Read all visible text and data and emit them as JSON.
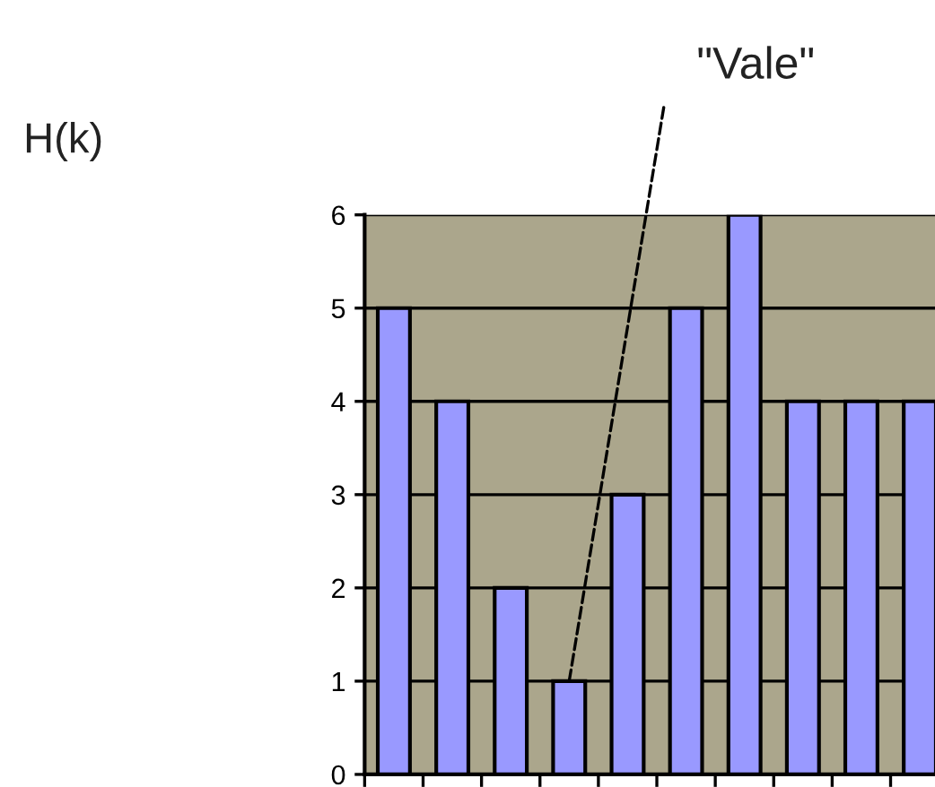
{
  "chart_data": {
    "type": "bar",
    "categories": [
      null,
      null,
      null,
      null,
      null,
      null,
      null,
      null,
      null,
      null
    ],
    "values": [
      5,
      4,
      2,
      1,
      3,
      5,
      6,
      4,
      4,
      4
    ],
    "color": "#9999ff",
    "ylim": [
      0,
      6
    ],
    "yticks": [
      0,
      1,
      2,
      3,
      4,
      5,
      6
    ],
    "grid": "y",
    "annotations": [
      "\"Vale\"",
      "H(k)"
    ]
  }
}
